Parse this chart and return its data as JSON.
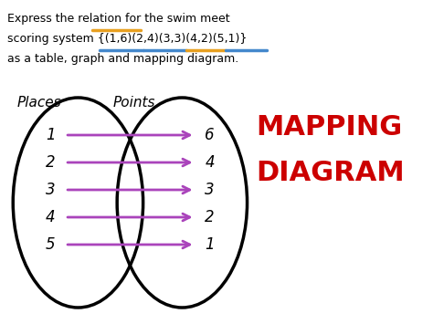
{
  "title_line1": "Express the relation for the swim meet",
  "title_line2": "scoring system {(1,6)(2,4)(3,3)(4,2)(5,1)}",
  "title_line3": "as a table, graph and mapping diagram.",
  "places_label": "Places",
  "points_label": "Points",
  "mapping_label_line1": "MAPPING",
  "mapping_label_line2": "DIAGRAM",
  "places": [
    "1",
    "2",
    "3",
    "4",
    "5"
  ],
  "points": [
    "6",
    "4",
    "3",
    "2",
    "1"
  ],
  "arrow_color": "#aa44bb",
  "mapping_text_color": "#cc0000",
  "bg_color": "#ffffff",
  "orange_line_color": "#e8a020",
  "blue_line_color": "#4488cc"
}
